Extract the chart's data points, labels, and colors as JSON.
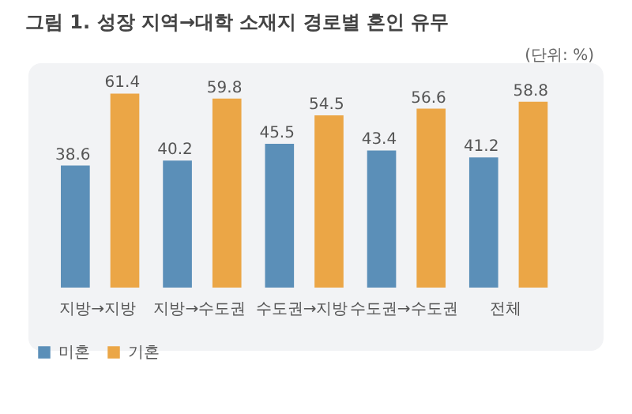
{
  "chart_data": {
    "type": "bar",
    "title": "그림 1. 성장 지역→대학 소재지 경로별 혼인 유무",
    "annotations": [
      "(단위: %)"
    ],
    "categories": [
      "지방→지방",
      "지방→수도권",
      "수도권→지방",
      "수도권→수도권",
      "전체"
    ],
    "series": [
      {
        "name": "미혼",
        "color": "#5b8fb8",
        "values": [
          38.6,
          40.2,
          45.5,
          43.4,
          41.2
        ]
      },
      {
        "name": "기혼",
        "color": "#eba646",
        "values": [
          61.4,
          59.8,
          54.5,
          56.6,
          58.8
        ]
      }
    ],
    "data_labels": true,
    "legend": "bottom"
  }
}
